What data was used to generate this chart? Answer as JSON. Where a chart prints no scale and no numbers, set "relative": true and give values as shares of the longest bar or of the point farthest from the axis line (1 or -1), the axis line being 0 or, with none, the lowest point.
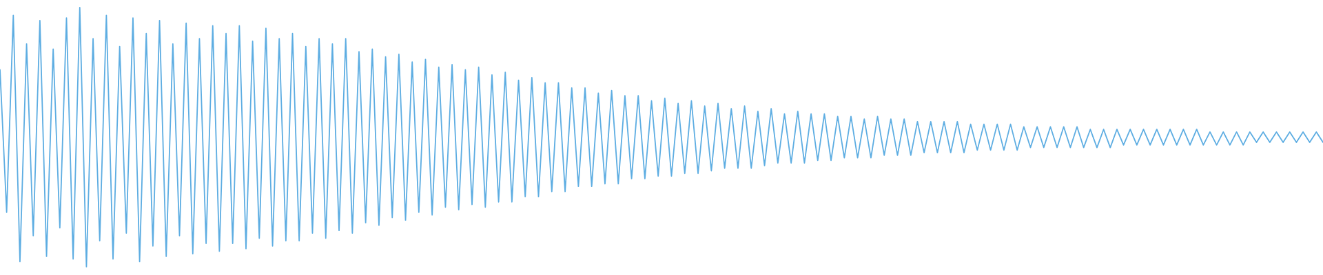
{
  "chart_data": {
    "type": "line",
    "relative": true,
    "color": "#5dade2",
    "categories": [
      null,
      null,
      null,
      null,
      null,
      null,
      null,
      null,
      null,
      null,
      null,
      null,
      null,
      null,
      null,
      null,
      null,
      null,
      null,
      null,
      null,
      null,
      null,
      null,
      null,
      null,
      null,
      null,
      null,
      null,
      null,
      null,
      null,
      null,
      null,
      null,
      null,
      null,
      null,
      null,
      null,
      null,
      null,
      null,
      null,
      null,
      null,
      null,
      null,
      null,
      null,
      null,
      null,
      null,
      null,
      null,
      null,
      null,
      null,
      null,
      null,
      null,
      null,
      null,
      null,
      null,
      null,
      null,
      null,
      null,
      null,
      null,
      null,
      null,
      null,
      null,
      null,
      null,
      null,
      null,
      null,
      null,
      null,
      null,
      null,
      null,
      null,
      null,
      null,
      null,
      null,
      null,
      null,
      null,
      null,
      null,
      null,
      null,
      null,
      null,
      null,
      null,
      null,
      null,
      null,
      null,
      null,
      null,
      null,
      null,
      null,
      null,
      null,
      null,
      null,
      null,
      null,
      null,
      null,
      null,
      null,
      null,
      null,
      null,
      null,
      null,
      null,
      null,
      null,
      null,
      null,
      null,
      null,
      null,
      null,
      null,
      null,
      null,
      null,
      null,
      null,
      null,
      null,
      null,
      null,
      null,
      null,
      null,
      null,
      null,
      null,
      null,
      null,
      null,
      null,
      null,
      null,
      null,
      null,
      null,
      null,
      null,
      null,
      null,
      null,
      null,
      null,
      null,
      null,
      null,
      null,
      null,
      null,
      null,
      null,
      null,
      null,
      null,
      null,
      null,
      null,
      null,
      null,
      null,
      null,
      null,
      null,
      null,
      null,
      null,
      null,
      null,
      null,
      null,
      null,
      null,
      null,
      null,
      null,
      null
    ],
    "values": [
      0.76,
      0.21,
      0.97,
      0.02,
      0.86,
      0.12,
      0.95,
      0.04,
      0.84,
      0.15,
      0.96,
      0.03,
      1.0,
      0.0,
      0.88,
      0.1,
      0.97,
      0.03,
      0.85,
      0.13,
      0.96,
      0.02,
      0.9,
      0.08,
      0.95,
      0.04,
      0.86,
      0.12,
      0.94,
      0.05,
      0.88,
      0.09,
      0.93,
      0.06,
      0.9,
      0.09,
      0.93,
      0.07,
      0.87,
      0.11,
      0.92,
      0.08,
      0.88,
      0.1,
      0.9,
      0.1,
      0.85,
      0.13,
      0.88,
      0.11,
      0.86,
      0.14,
      0.88,
      0.13,
      0.83,
      0.17,
      0.84,
      0.16,
      0.81,
      0.19,
      0.82,
      0.18,
      0.79,
      0.21,
      0.8,
      0.2,
      0.77,
      0.23,
      0.78,
      0.22,
      0.76,
      0.24,
      0.77,
      0.23,
      0.74,
      0.25,
      0.75,
      0.25,
      0.72,
      0.27,
      0.73,
      0.27,
      0.71,
      0.29,
      0.71,
      0.29,
      0.69,
      0.31,
      0.69,
      0.31,
      0.67,
      0.32,
      0.68,
      0.32,
      0.66,
      0.34,
      0.66,
      0.34,
      0.64,
      0.35,
      0.65,
      0.35,
      0.63,
      0.36,
      0.64,
      0.36,
      0.62,
      0.37,
      0.63,
      0.38,
      0.61,
      0.38,
      0.62,
      0.38,
      0.6,
      0.39,
      0.61,
      0.4,
      0.59,
      0.4,
      0.6,
      0.4,
      0.59,
      0.41,
      0.59,
      0.41,
      0.58,
      0.42,
      0.58,
      0.42,
      0.57,
      0.42,
      0.58,
      0.43,
      0.57,
      0.43,
      0.57,
      0.43,
      0.56,
      0.44,
      0.56,
      0.44,
      0.56,
      0.44,
      0.56,
      0.44,
      0.55,
      0.45,
      0.55,
      0.45,
      0.55,
      0.45,
      0.55,
      0.45,
      0.54,
      0.46,
      0.54,
      0.46,
      0.54,
      0.46,
      0.54,
      0.46,
      0.54,
      0.46,
      0.53,
      0.46,
      0.53,
      0.46,
      0.53,
      0.47,
      0.53,
      0.47,
      0.53,
      0.47,
      0.53,
      0.47,
      0.53,
      0.47,
      0.53,
      0.47,
      0.53,
      0.47,
      0.52,
      0.47,
      0.52,
      0.47,
      0.52,
      0.47,
      0.52,
      0.48,
      0.52,
      0.48,
      0.52,
      0.48,
      0.52,
      0.48,
      0.52,
      0.48,
      0.52,
      0.48
    ]
  }
}
